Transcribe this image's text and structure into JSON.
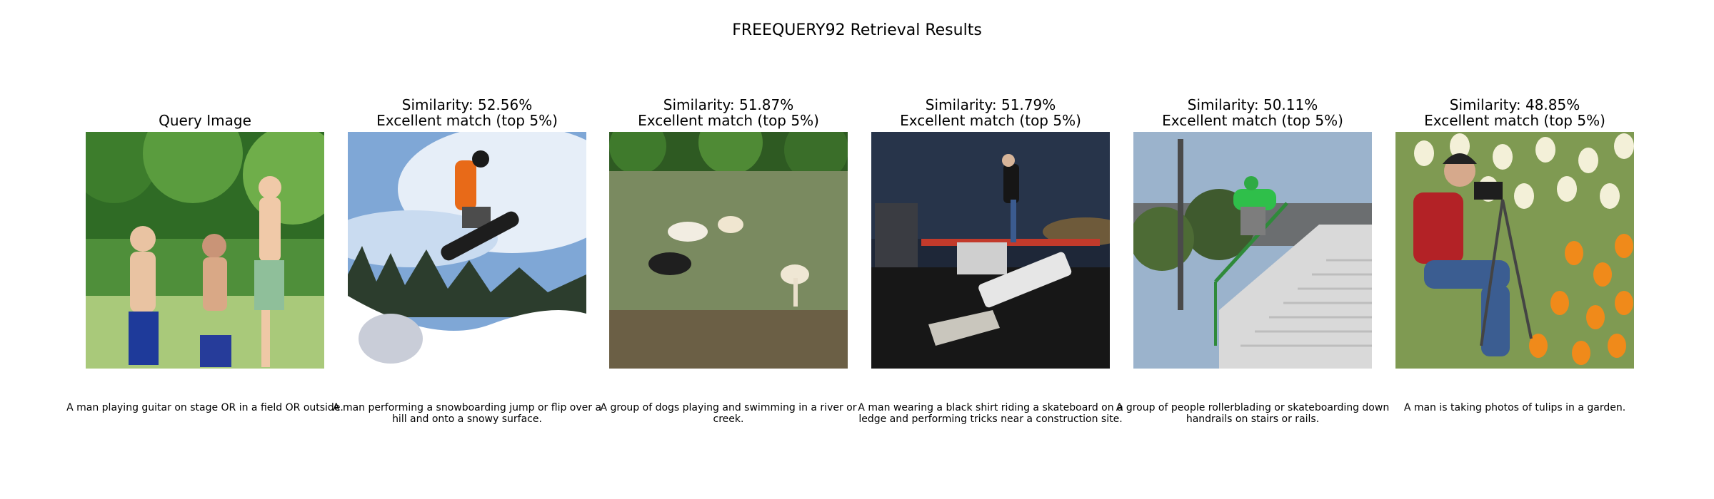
{
  "figure": {
    "title": "FREEQUERY92 Retrieval Results"
  },
  "query": {
    "label": "Query Image",
    "caption": "A man playing guitar on stage OR in a field OR outside."
  },
  "results": [
    {
      "similarity_text": "Similarity: 52.56%",
      "match_text": "Excellent match (top 5%)",
      "caption": "A man performing a snowboarding jump or flip over a hill and onto a snowy surface.",
      "similarity": 52.56
    },
    {
      "similarity_text": "Similarity: 51.87%",
      "match_text": "Excellent match (top 5%)",
      "caption": "A group of dogs playing and swimming in a river or creek.",
      "similarity": 51.87
    },
    {
      "similarity_text": "Similarity: 51.79%",
      "match_text": "Excellent match (top 5%)",
      "caption": "A man wearing a black shirt riding a skateboard on a ledge and performing tricks near a construction site.",
      "similarity": 51.79
    },
    {
      "similarity_text": "Similarity: 50.11%",
      "match_text": "Excellent match (top 5%)",
      "caption": "A group of people rollerblading or skateboarding down handrails on stairs or rails.",
      "similarity": 50.11
    },
    {
      "similarity_text": "Similarity: 48.85%",
      "match_text": "Excellent match (top 5%)",
      "caption": "A man is taking photos of tulips in a garden.",
      "similarity": 48.85
    }
  ]
}
